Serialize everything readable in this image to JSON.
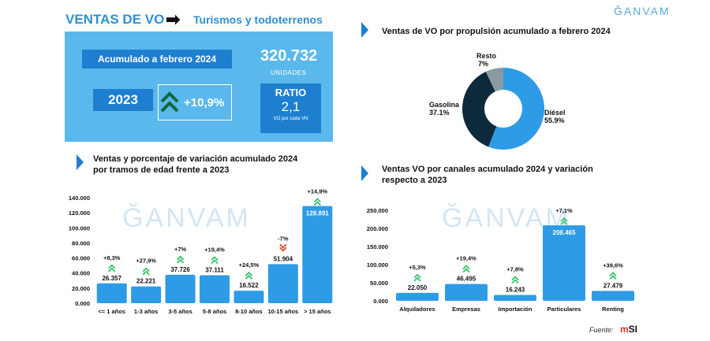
{
  "header": {
    "title": "VENTAS DE VO",
    "arrow": "➡",
    "subtitle": "Turismos y todoterrenos",
    "logo": "ĞANVAM"
  },
  "kpis": {
    "acumulado_label": "Acumulado a febrero 2024",
    "total_units": "320.732",
    "units_label": "UNIDADES",
    "compare_year": "2023",
    "variation": "+10,9%",
    "ratio_title": "RATIO",
    "ratio_value": "2,1",
    "ratio_note": "VO por cada VN",
    "accent_color": "#5bb8ec",
    "dark_blue": "#1e7fd0"
  },
  "sections": {
    "pie_title": "Ventas de VO por propulsión acumulado a febrero 2024",
    "age_title_1": "Ventas y porcentaje de variación acumulado 2024",
    "age_title_2": "por tramos de edad frente a 2023",
    "channel_title_1": "Ventas VO por canales acumulado 2024 y variación",
    "channel_title_2": "respecto a 2023"
  },
  "footer": {
    "fuente_label": "Fuente:",
    "source_logo_a": "m",
    "source_logo_b": "SI"
  },
  "chart_data": [
    {
      "type": "pie",
      "title": "Ventas de VO por propulsión acumulado a febrero 2024",
      "slices": [
        {
          "label": "Diésel",
          "value": 55.9,
          "value_label": "55.9%",
          "color": "#2e9be6"
        },
        {
          "label": "Gasolina",
          "value": 37.1,
          "value_label": "37.1%",
          "color": "#0d2a3c"
        },
        {
          "label": "Resto",
          "value": 7.0,
          "value_label": "7%",
          "color": "#8a9aa3"
        }
      ],
      "donut": true
    },
    {
      "type": "bar",
      "title": "Ventas y porcentaje de variación acumulado 2024 por tramos de edad frente a 2023",
      "categories": [
        "<= 1 años",
        "1-3 años",
        "3-5 años",
        "5-8 años",
        "8-10 años",
        "10-15 años",
        "> 15 años"
      ],
      "values": [
        26357,
        22221,
        37726,
        37111,
        16522,
        51904,
        128891
      ],
      "value_labels": [
        "26.357",
        "22.221",
        "37.726",
        "37.111",
        "16.522",
        "51.904",
        "128.891"
      ],
      "variations": [
        "+8,3%",
        "+27,9%",
        "+7%",
        "+19,4%",
        "+24,5%",
        "-7%",
        "+14,9%"
      ],
      "variation_up": [
        true,
        true,
        true,
        true,
        true,
        false,
        true
      ],
      "ylim": [
        0,
        140000
      ],
      "yticks": [
        "0.000",
        "20.000",
        "40.000",
        "60.000",
        "80.000",
        "100.000",
        "120.000",
        "140.000"
      ],
      "ytick_values": [
        0,
        20000,
        40000,
        60000,
        80000,
        100000,
        120000,
        140000
      ],
      "grid": false,
      "bar_color": "#2e9be6",
      "up_color": "#35c46a",
      "down_color": "#e24b2b"
    },
    {
      "type": "bar",
      "title": "Ventas VO por canales acumulado 2024 y variación respecto a 2023",
      "categories": [
        "Alquiladores",
        "Empresas",
        "Importación",
        "Particulares",
        "Renting"
      ],
      "values": [
        22050,
        46495,
        16243,
        208465,
        27479
      ],
      "value_labels": [
        "22.050",
        "46.495",
        "16.243",
        "208.465",
        "27.479"
      ],
      "variations": [
        "+5,3%",
        "+19,4%",
        "+7,8%",
        "+7,1%",
        "+39,6%"
      ],
      "variation_up": [
        true,
        true,
        true,
        true,
        true
      ],
      "ylim": [
        0,
        250000
      ],
      "yticks": [
        "0.000",
        "50.000",
        "100.000",
        "150.000",
        "200.000",
        "250.000"
      ],
      "ytick_values": [
        0,
        50000,
        100000,
        150000,
        200000,
        250000
      ],
      "grid": false,
      "bar_color": "#2e9be6",
      "up_color": "#35c46a"
    }
  ]
}
